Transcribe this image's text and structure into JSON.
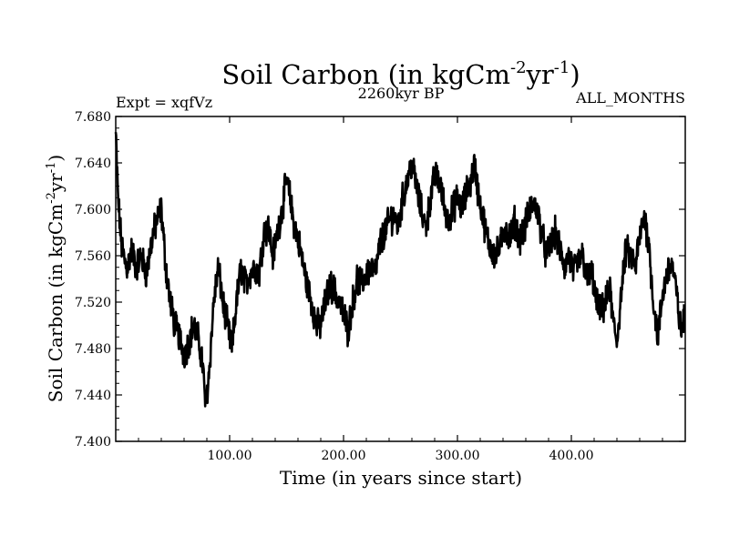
{
  "chart_data": {
    "type": "line",
    "title": {
      "base": "Soil Carbon (in kgCm",
      "exp1": "-2",
      "mid": "yr",
      "exp2": "-1",
      "close": ")"
    },
    "subtitle_left": "Expt = xqfVz",
    "subtitle_center": "2260kyr BP",
    "subtitle_right": "ALL_MONTHS",
    "xlabel": "Time (in years since start)",
    "ylabel": {
      "base": "Soil Carbon (in kgCm",
      "exp1": "-2",
      "mid": "yr",
      "exp2": "-1",
      "close": ")"
    },
    "xlim": [
      0,
      500
    ],
    "ylim": [
      7.4,
      7.68
    ],
    "xticks": [
      {
        "value": 100,
        "label": "100.00"
      },
      {
        "value": 200,
        "label": "200.00"
      },
      {
        "value": 300,
        "label": "300.00"
      },
      {
        "value": 400,
        "label": "400.00"
      }
    ],
    "yticks": [
      {
        "value": 7.4,
        "label": "7.400"
      },
      {
        "value": 7.44,
        "label": "7.440"
      },
      {
        "value": 7.48,
        "label": "7.480"
      },
      {
        "value": 7.52,
        "label": "7.520"
      },
      {
        "value": 7.56,
        "label": "7.560"
      },
      {
        "value": 7.6,
        "label": "7.600"
      },
      {
        "value": 7.64,
        "label": "7.640"
      },
      {
        "value": 7.68,
        "label": "7.680"
      }
    ],
    "series": [
      {
        "name": "Soil Carbon",
        "color": "#000000",
        "x": [
          0,
          2,
          5,
          8,
          10,
          14,
          18,
          22,
          27,
          32,
          36,
          40,
          44,
          48,
          52,
          56,
          60,
          64,
          68,
          72,
          76,
          79,
          82,
          86,
          90,
          94,
          98,
          102,
          106,
          110,
          114,
          118,
          122,
          126,
          130,
          134,
          138,
          142,
          146,
          150,
          153,
          156,
          160,
          164,
          168,
          172,
          176,
          180,
          184,
          188,
          192,
          196,
          200,
          204,
          208,
          212,
          216,
          220,
          224,
          228,
          232,
          236,
          240,
          244,
          248,
          252,
          256,
          260,
          264,
          268,
          272,
          276,
          280,
          284,
          288,
          292,
          296,
          300,
          304,
          308,
          312,
          315,
          318,
          322,
          326,
          330,
          334,
          338,
          342,
          346,
          350,
          354,
          358,
          362,
          366,
          370,
          374,
          378,
          382,
          386,
          390,
          394,
          398,
          402,
          406,
          410,
          414,
          418,
          422,
          426,
          430,
          434,
          437,
          440,
          444,
          448,
          452,
          456,
          460,
          464,
          468,
          472,
          476,
          480,
          484,
          488,
          492,
          496,
          499
        ],
        "y": [
          7.665,
          7.61,
          7.57,
          7.555,
          7.55,
          7.565,
          7.55,
          7.56,
          7.545,
          7.575,
          7.59,
          7.6,
          7.55,
          7.52,
          7.5,
          7.49,
          7.475,
          7.485,
          7.5,
          7.49,
          7.47,
          7.43,
          7.46,
          7.52,
          7.55,
          7.52,
          7.5,
          7.48,
          7.52,
          7.55,
          7.535,
          7.545,
          7.55,
          7.545,
          7.58,
          7.585,
          7.56,
          7.58,
          7.6,
          7.625,
          7.61,
          7.59,
          7.575,
          7.555,
          7.535,
          7.52,
          7.5,
          7.5,
          7.52,
          7.535,
          7.53,
          7.52,
          7.51,
          7.495,
          7.52,
          7.54,
          7.535,
          7.545,
          7.55,
          7.545,
          7.57,
          7.58,
          7.59,
          7.595,
          7.585,
          7.61,
          7.625,
          7.64,
          7.62,
          7.6,
          7.585,
          7.605,
          7.63,
          7.625,
          7.605,
          7.59,
          7.6,
          7.61,
          7.6,
          7.615,
          7.625,
          7.64,
          7.615,
          7.595,
          7.575,
          7.565,
          7.56,
          7.57,
          7.585,
          7.575,
          7.59,
          7.575,
          7.58,
          7.595,
          7.605,
          7.6,
          7.58,
          7.56,
          7.57,
          7.58,
          7.565,
          7.55,
          7.56,
          7.545,
          7.555,
          7.56,
          7.54,
          7.545,
          7.52,
          7.51,
          7.52,
          7.53,
          7.5,
          7.485,
          7.53,
          7.565,
          7.56,
          7.55,
          7.575,
          7.595,
          7.57,
          7.52,
          7.49,
          7.525,
          7.545,
          7.555,
          7.53,
          7.495,
          7.505
        ]
      }
    ]
  }
}
